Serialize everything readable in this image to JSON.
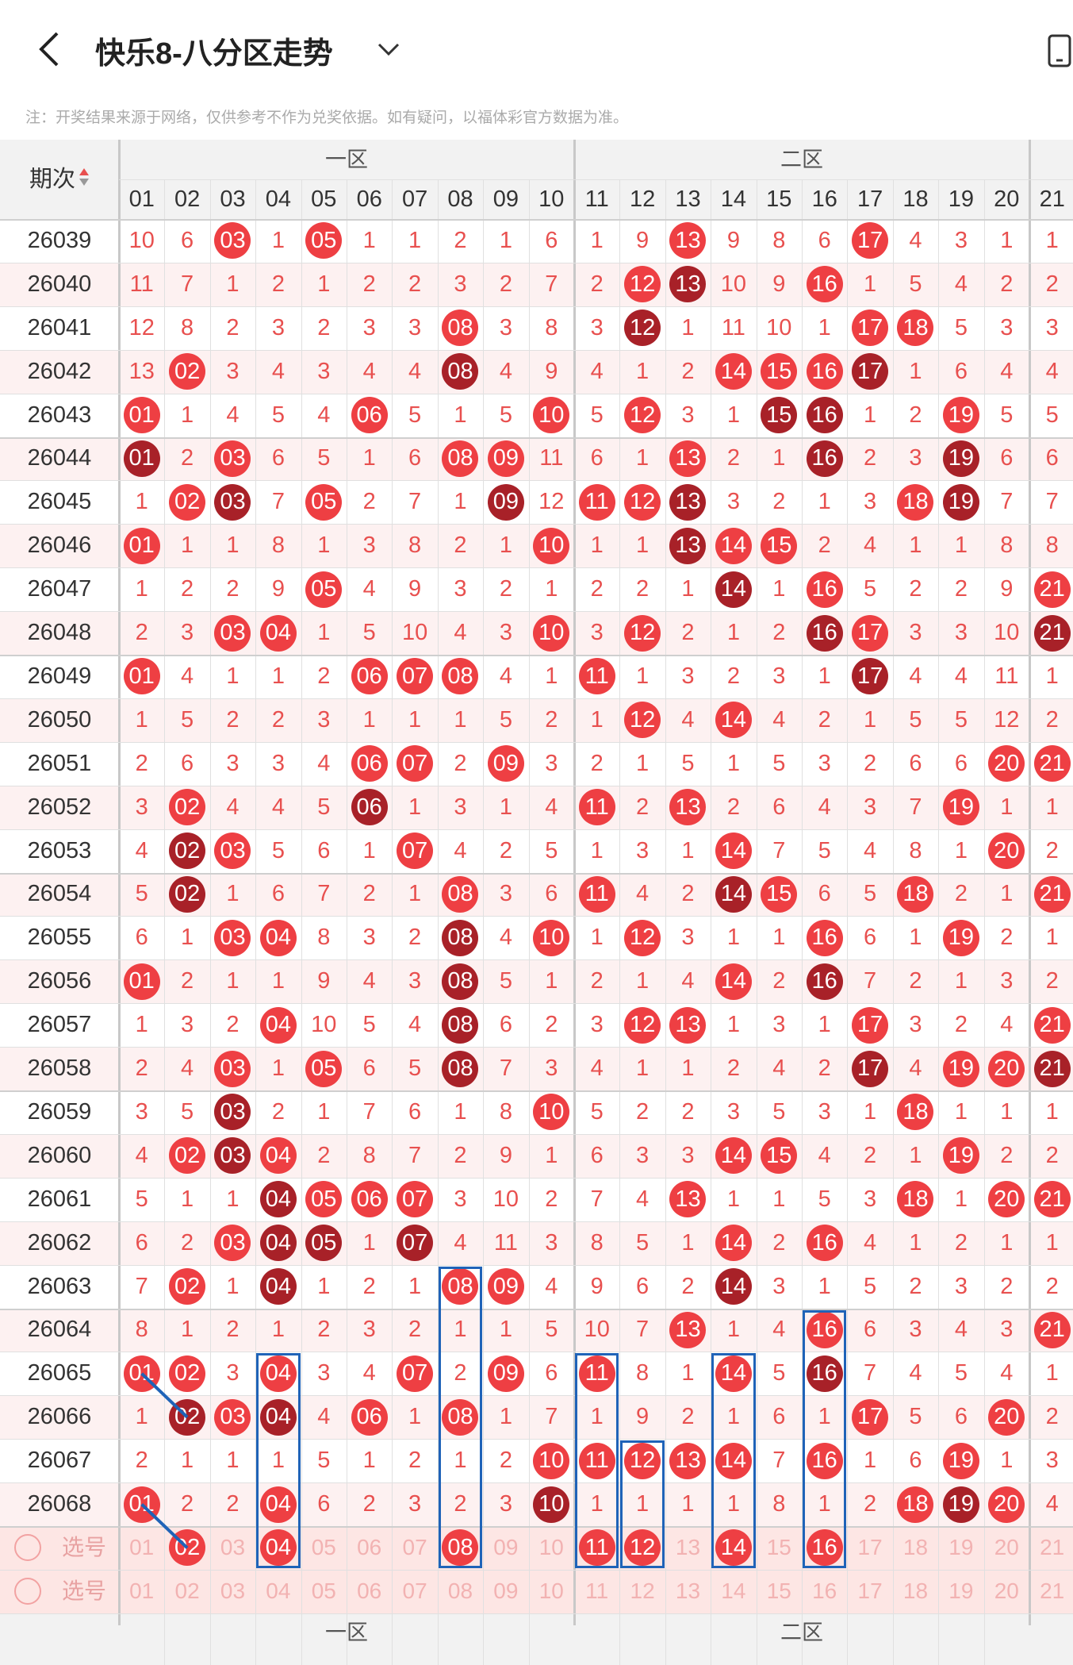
{
  "header": {
    "title": "快乐8-八分区走势"
  },
  "notice": "注：开奖结果来源于网络，仅供参考不作为兑奖依据。如有疑问，以福体彩官方数据为准。",
  "table": {
    "period_label": "期次",
    "zones": [
      "一区",
      "二区"
    ],
    "columns": [
      "01",
      "02",
      "03",
      "04",
      "05",
      "06",
      "07",
      "08",
      "09",
      "10",
      "11",
      "12",
      "13",
      "14",
      "15",
      "16",
      "17",
      "18",
      "19",
      "20",
      "21"
    ],
    "rows": [
      {
        "p": "26039",
        "c": [
          "10",
          "6",
          "03",
          "1",
          "05",
          "1",
          "1",
          "2",
          "1",
          "6",
          "1",
          "9",
          "13",
          "9",
          "8",
          "6",
          "17",
          "4",
          "3",
          "1",
          "1"
        ]
      },
      {
        "p": "26040",
        "c": [
          "11",
          "7",
          "1",
          "2",
          "1",
          "2",
          "2",
          "3",
          "2",
          "7",
          "2",
          "12",
          "13",
          "10",
          "9",
          "16",
          "1",
          "5",
          "4",
          "2",
          "2"
        ]
      },
      {
        "p": "26041",
        "c": [
          "12",
          "8",
          "2",
          "3",
          "2",
          "3",
          "3",
          "08",
          "3",
          "8",
          "3",
          "12",
          "1",
          "11",
          "10",
          "1",
          "17",
          "18",
          "5",
          "3",
          "3"
        ]
      },
      {
        "p": "26042",
        "c": [
          "13",
          "02",
          "3",
          "4",
          "3",
          "4",
          "4",
          "08",
          "4",
          "9",
          "4",
          "1",
          "2",
          "14",
          "15",
          "16",
          "17",
          "1",
          "6",
          "4",
          "4"
        ]
      },
      {
        "p": "26043",
        "c": [
          "01",
          "1",
          "4",
          "5",
          "4",
          "06",
          "5",
          "1",
          "5",
          "10",
          "5",
          "12",
          "3",
          "1",
          "15",
          "16",
          "1",
          "2",
          "19",
          "5",
          "5"
        ]
      },
      {
        "p": "26044",
        "c": [
          "01",
          "2",
          "03",
          "6",
          "5",
          "1",
          "6",
          "08",
          "09",
          "11",
          "6",
          "1",
          "13",
          "2",
          "1",
          "16",
          "2",
          "3",
          "19",
          "6",
          "6"
        ]
      },
      {
        "p": "26045",
        "c": [
          "1",
          "02",
          "03",
          "7",
          "05",
          "2",
          "7",
          "1",
          "09",
          "12",
          "11",
          "12",
          "13",
          "3",
          "2",
          "1",
          "3",
          "18",
          "19",
          "7",
          "7"
        ]
      },
      {
        "p": "26046",
        "c": [
          "01",
          "1",
          "1",
          "8",
          "1",
          "3",
          "8",
          "2",
          "1",
          "10",
          "1",
          "1",
          "13",
          "14",
          "15",
          "2",
          "4",
          "1",
          "1",
          "8",
          "8"
        ]
      },
      {
        "p": "26047",
        "c": [
          "1",
          "2",
          "2",
          "9",
          "05",
          "4",
          "9",
          "3",
          "2",
          "1",
          "2",
          "2",
          "1",
          "14",
          "1",
          "16",
          "5",
          "2",
          "2",
          "9",
          "21"
        ]
      },
      {
        "p": "26048",
        "c": [
          "2",
          "3",
          "03",
          "04",
          "1",
          "5",
          "10",
          "4",
          "3",
          "10",
          "3",
          "12",
          "2",
          "1",
          "2",
          "16",
          "17",
          "3",
          "3",
          "10",
          "21"
        ]
      },
      {
        "p": "26049",
        "c": [
          "01",
          "4",
          "1",
          "1",
          "2",
          "06",
          "07",
          "08",
          "4",
          "1",
          "11",
          "1",
          "3",
          "2",
          "3",
          "1",
          "17",
          "4",
          "4",
          "11",
          "1"
        ]
      },
      {
        "p": "26050",
        "c": [
          "1",
          "5",
          "2",
          "2",
          "3",
          "1",
          "1",
          "1",
          "5",
          "2",
          "1",
          "12",
          "4",
          "14",
          "4",
          "2",
          "1",
          "5",
          "5",
          "12",
          "2"
        ]
      },
      {
        "p": "26051",
        "c": [
          "2",
          "6",
          "3",
          "3",
          "4",
          "06",
          "07",
          "2",
          "09",
          "3",
          "2",
          "1",
          "5",
          "1",
          "5",
          "3",
          "2",
          "6",
          "6",
          "20",
          "21"
        ]
      },
      {
        "p": "26052",
        "c": [
          "3",
          "02",
          "4",
          "4",
          "5",
          "06",
          "1",
          "3",
          "1",
          "4",
          "11",
          "2",
          "13",
          "2",
          "6",
          "4",
          "3",
          "7",
          "19",
          "1",
          "1"
        ]
      },
      {
        "p": "26053",
        "c": [
          "4",
          "02",
          "03",
          "5",
          "6",
          "1",
          "07",
          "4",
          "2",
          "5",
          "1",
          "3",
          "1",
          "14",
          "7",
          "5",
          "4",
          "8",
          "1",
          "20",
          "2"
        ]
      },
      {
        "p": "26054",
        "c": [
          "5",
          "02",
          "1",
          "6",
          "7",
          "2",
          "1",
          "08",
          "3",
          "6",
          "11",
          "4",
          "2",
          "14",
          "15",
          "6",
          "5",
          "18",
          "2",
          "1",
          "21"
        ]
      },
      {
        "p": "26055",
        "c": [
          "6",
          "1",
          "03",
          "04",
          "8",
          "3",
          "2",
          "08",
          "4",
          "10",
          "1",
          "12",
          "3",
          "1",
          "1",
          "16",
          "6",
          "1",
          "19",
          "2",
          "1"
        ]
      },
      {
        "p": "26056",
        "c": [
          "01",
          "2",
          "1",
          "1",
          "9",
          "4",
          "3",
          "08",
          "5",
          "1",
          "2",
          "1",
          "4",
          "14",
          "2",
          "16",
          "7",
          "2",
          "1",
          "3",
          "2"
        ]
      },
      {
        "p": "26057",
        "c": [
          "1",
          "3",
          "2",
          "04",
          "10",
          "5",
          "4",
          "08",
          "6",
          "2",
          "3",
          "12",
          "13",
          "1",
          "3",
          "1",
          "17",
          "3",
          "2",
          "4",
          "21"
        ]
      },
      {
        "p": "26058",
        "c": [
          "2",
          "4",
          "03",
          "1",
          "05",
          "6",
          "5",
          "08",
          "7",
          "3",
          "4",
          "1",
          "1",
          "2",
          "4",
          "2",
          "17",
          "4",
          "19",
          "20",
          "21"
        ]
      },
      {
        "p": "26059",
        "c": [
          "3",
          "5",
          "03",
          "2",
          "1",
          "7",
          "6",
          "1",
          "8",
          "10",
          "5",
          "2",
          "2",
          "3",
          "5",
          "3",
          "1",
          "18",
          "1",
          "1",
          "1"
        ]
      },
      {
        "p": "26060",
        "c": [
          "4",
          "02",
          "03",
          "04",
          "2",
          "8",
          "7",
          "2",
          "9",
          "1",
          "6",
          "3",
          "3",
          "14",
          "15",
          "4",
          "2",
          "1",
          "19",
          "2",
          "2"
        ]
      },
      {
        "p": "26061",
        "c": [
          "5",
          "1",
          "1",
          "04",
          "05",
          "06",
          "07",
          "3",
          "10",
          "2",
          "7",
          "4",
          "13",
          "1",
          "1",
          "5",
          "3",
          "18",
          "1",
          "20",
          "21"
        ]
      },
      {
        "p": "26062",
        "c": [
          "6",
          "2",
          "03",
          "04",
          "05",
          "1",
          "07",
          "4",
          "11",
          "3",
          "8",
          "5",
          "1",
          "14",
          "2",
          "16",
          "4",
          "1",
          "2",
          "1",
          "1"
        ]
      },
      {
        "p": "26063",
        "c": [
          "7",
          "02",
          "1",
          "04",
          "1",
          "2",
          "1",
          "08",
          "09",
          "4",
          "9",
          "6",
          "2",
          "14",
          "3",
          "1",
          "5",
          "2",
          "3",
          "2",
          "2"
        ]
      },
      {
        "p": "26064",
        "c": [
          "8",
          "1",
          "2",
          "1",
          "2",
          "3",
          "2",
          "1",
          "1",
          "5",
          "10",
          "7",
          "13",
          "1",
          "4",
          "16",
          "6",
          "3",
          "4",
          "3",
          "21"
        ]
      },
      {
        "p": "26065",
        "c": [
          "01",
          "02",
          "3",
          "04",
          "3",
          "4",
          "07",
          "2",
          "09",
          "6",
          "11",
          "8",
          "1",
          "14",
          "5",
          "16",
          "7",
          "4",
          "5",
          "4",
          "1"
        ]
      },
      {
        "p": "26066",
        "c": [
          "1",
          "02",
          "03",
          "04",
          "4",
          "06",
          "1",
          "08",
          "1",
          "7",
          "1",
          "9",
          "2",
          "1",
          "6",
          "1",
          "17",
          "5",
          "6",
          "20",
          "2"
        ]
      },
      {
        "p": "26067",
        "c": [
          "2",
          "1",
          "1",
          "1",
          "5",
          "1",
          "2",
          "1",
          "2",
          "10",
          "11",
          "12",
          "13",
          "14",
          "7",
          "16",
          "1",
          "6",
          "19",
          "1",
          "3"
        ]
      },
      {
        "p": "26068",
        "c": [
          "01",
          "2",
          "2",
          "04",
          "6",
          "2",
          "3",
          "2",
          "3",
          "10",
          "1",
          "1",
          "1",
          "1",
          "8",
          "1",
          "2",
          "18",
          "19",
          "20",
          "4"
        ]
      }
    ],
    "select_label": "选号",
    "sel1_selected": [
      "02",
      "04",
      "08",
      "11",
      "12",
      "14",
      "16"
    ]
  },
  "colors": {
    "ball_light": "#ee3f43",
    "ball_dark": "#a82128",
    "box": "#1f63b8",
    "value": "#e8504f"
  }
}
